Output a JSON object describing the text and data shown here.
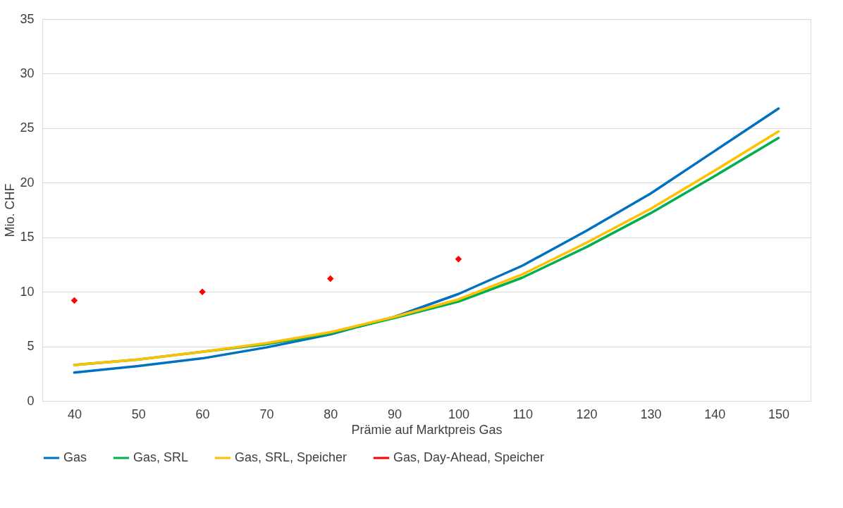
{
  "chart_data": {
    "type": "line",
    "xlabel": "Prämie auf Marktpreis Gas",
    "ylabel": "Mio. CHF",
    "categories": [
      "40",
      "50",
      "60",
      "70",
      "80",
      "90",
      "100",
      "110",
      "120",
      "130",
      "140",
      "150"
    ],
    "series": [
      {
        "name": "Gas",
        "color": "#0070c0",
        "marker": "none",
        "values": [
          2.6,
          3.2,
          3.9,
          4.9,
          6.1,
          7.7,
          9.8,
          12.4,
          15.6,
          19.0,
          22.9,
          26.8
        ]
      },
      {
        "name": "Gas, SRL",
        "color": "#00b050",
        "marker": "none",
        "values": [
          3.3,
          3.8,
          4.5,
          5.2,
          6.2,
          7.6,
          9.1,
          11.3,
          14.1,
          17.2,
          20.6,
          24.1
        ]
      },
      {
        "name": "Gas, SRL, Speicher",
        "color": "#ffc000",
        "marker": "none",
        "values": [
          3.3,
          3.8,
          4.5,
          5.3,
          6.3,
          7.7,
          9.3,
          11.6,
          14.5,
          17.6,
          21.1,
          24.7
        ]
      },
      {
        "name": "Gas, Day-Ahead, Speicher",
        "color": "#ff0000",
        "type": "scatter",
        "marker": "diamond",
        "values": [
          9.2,
          null,
          10.0,
          null,
          11.2,
          null,
          13.0,
          null,
          null,
          null,
          null,
          null
        ]
      }
    ],
    "ylim": [
      0,
      35
    ],
    "yticks": [
      0,
      5,
      10,
      15,
      20,
      25,
      30,
      35
    ],
    "grid": "y",
    "legend": "bottom",
    "line_style": "solid"
  }
}
